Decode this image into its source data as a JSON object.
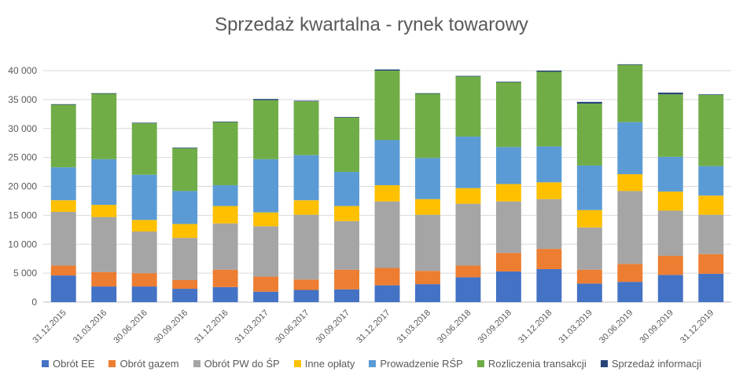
{
  "chart_data": {
    "type": "bar",
    "stacked": true,
    "title": "Sprzedaż kwartalna - rynek towarowy",
    "xlabel": "",
    "ylabel": "",
    "ylim": [
      0,
      40000
    ],
    "yticks": [
      "0",
      "5 000",
      "10 000",
      "15 000",
      "20 000",
      "25 000",
      "30 000",
      "35 000",
      "40 000"
    ],
    "grid": true,
    "legend_position": "bottom",
    "categories": [
      "31.12.2015",
      "31.03.2016",
      "30.06.2016",
      "30.09.2016",
      "31.12.2016",
      "31.03.2017",
      "30.06.2017",
      "30.09.2017",
      "31.12.2017",
      "31.03.2018",
      "30.06.2018",
      "30.09.2018",
      "31.12.2018",
      "31.03.2019",
      "30.06.2019",
      "30.09.2019",
      "31.12.2019"
    ],
    "series": [
      {
        "name": "Obrót EE",
        "color": "#4472C4",
        "values": [
          4600,
          2700,
          2700,
          2300,
          2600,
          1800,
          2100,
          2200,
          2900,
          3100,
          4300,
          5300,
          5700,
          3200,
          3500,
          4700,
          4900
        ]
      },
      {
        "name": "Obrót gazem",
        "color": "#ED7D31",
        "values": [
          1700,
          2500,
          2300,
          1500,
          3000,
          2600,
          1800,
          3400,
          3000,
          2300,
          2000,
          3200,
          3500,
          2400,
          3100,
          3300,
          3400
        ]
      },
      {
        "name": "Obrót PW do ŚP",
        "color": "#A5A5A5",
        "values": [
          9300,
          9500,
          7200,
          7300,
          8000,
          8700,
          11200,
          8400,
          11500,
          9700,
          10700,
          8900,
          8600,
          7300,
          12600,
          7800,
          6800
        ]
      },
      {
        "name": "Inne opłaty",
        "color": "#FFC000",
        "values": [
          2000,
          2100,
          2000,
          2400,
          3000,
          2400,
          2500,
          2600,
          2800,
          2700,
          2700,
          3000,
          2900,
          3000,
          2900,
          3300,
          3300
        ]
      },
      {
        "name": "Prowadzenie RŚP",
        "color": "#5B9BD5",
        "values": [
          5700,
          7900,
          7800,
          5700,
          3600,
          9200,
          7800,
          5900,
          7800,
          7100,
          8900,
          6400,
          6200,
          7700,
          9000,
          6000,
          5100
        ]
      },
      {
        "name": "Rozliczenia transakcji",
        "color": "#70AD47",
        "values": [
          10800,
          11300,
          8900,
          7400,
          10900,
          10200,
          9300,
          9400,
          12000,
          11100,
          10400,
          11200,
          12900,
          10700,
          9900,
          10800,
          12300
        ]
      },
      {
        "name": "Sprzedaż informacji",
        "color": "#264478",
        "values": [
          100,
          100,
          100,
          100,
          100,
          200,
          100,
          100,
          200,
          100,
          100,
          100,
          200,
          300,
          100,
          300,
          100
        ]
      }
    ]
  }
}
